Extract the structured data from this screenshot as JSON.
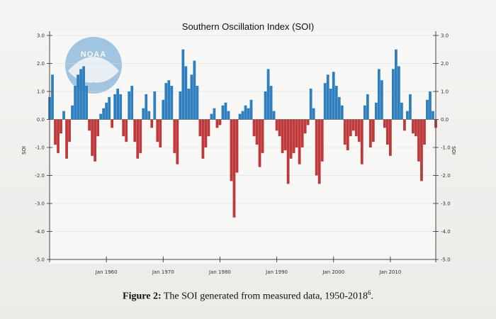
{
  "chart_data": {
    "type": "bar",
    "title": "Southern Oscillation Index (SOI)",
    "ylabel": "SOI",
    "ylabel_right": "SOI",
    "ylim": [
      -5.0,
      3.0
    ],
    "yticks": [
      "3.0",
      "2.0",
      "1.0",
      "0.0",
      "-1.0",
      "-2.0",
      "-3.0",
      "-4.0",
      "-5.0"
    ],
    "yticks_right": [
      "3.0",
      "2.0",
      "1.0",
      "0.0",
      "-1.0",
      "-2.0",
      "-3.0",
      "-4.0",
      "-5.0"
    ],
    "xticks": [
      "Jan 1960",
      "Jan 1970",
      "Jan 1980",
      "Jan 1990",
      "Jan 2000",
      "Jan 2010"
    ],
    "xlim": [
      1950,
      2018
    ],
    "positive_color": "#2f7fbf",
    "negative_color": "#c0393a",
    "grid": true,
    "series": [
      {
        "x": [
          1950.0,
          1950.5,
          1951.0,
          1951.5,
          1952.0,
          1952.5,
          1953.0,
          1953.5,
          1954.0,
          1954.5,
          1955.0,
          1955.5,
          1956.0,
          1956.5,
          1957.0,
          1957.5,
          1958.0,
          1958.5,
          1959.0,
          1959.5,
          1960.0,
          1960.5,
          1961.0,
          1961.5,
          1962.0,
          1962.5,
          1963.0,
          1963.5,
          1964.0,
          1964.5,
          1965.0,
          1965.5,
          1966.0,
          1966.5,
          1967.0,
          1967.5,
          1968.0,
          1968.5,
          1969.0,
          1969.5,
          1970.0,
          1970.5,
          1971.0,
          1971.5,
          1972.0,
          1972.5,
          1973.0,
          1973.5,
          1974.0,
          1974.5,
          1975.0,
          1975.5,
          1976.0,
          1976.5,
          1977.0,
          1977.5,
          1978.0,
          1978.5,
          1979.0,
          1979.5,
          1980.0,
          1980.5,
          1981.0,
          1981.5,
          1982.0,
          1982.5,
          1983.0,
          1983.5,
          1984.0,
          1984.5,
          1985.0,
          1985.5,
          1986.0,
          1986.5,
          1987.0,
          1987.5,
          1988.0,
          1988.5,
          1989.0,
          1989.5,
          1990.0,
          1990.5,
          1991.0,
          1991.5,
          1992.0,
          1992.5,
          1993.0,
          1993.5,
          1994.0,
          1994.5,
          1995.0,
          1995.5,
          1996.0,
          1996.5,
          1997.0,
          1997.5,
          1998.0,
          1998.5,
          1999.0,
          1999.5,
          2000.0,
          2000.5,
          2001.0,
          2001.5,
          2002.0,
          2002.5,
          2003.0,
          2003.5,
          2004.0,
          2004.5,
          2005.0,
          2005.5,
          2006.0,
          2006.5,
          2007.0,
          2007.5,
          2008.0,
          2008.5,
          2009.0,
          2009.5,
          2010.0,
          2010.5,
          2011.0,
          2011.5,
          2012.0,
          2012.5,
          2013.0,
          2013.5,
          2014.0,
          2014.5,
          2015.0,
          2015.5,
          2016.0,
          2016.5,
          2017.0,
          2017.5,
          2018.0
        ],
        "values": [
          0.8,
          1.6,
          -0.9,
          -1.2,
          -0.5,
          0.3,
          -1.4,
          -0.8,
          0.5,
          1.2,
          1.6,
          1.8,
          1.9,
          1.2,
          -0.4,
          -1.3,
          -1.5,
          -0.6,
          0.2,
          0.4,
          0.6,
          0.8,
          -0.3,
          0.9,
          1.1,
          0.9,
          -0.6,
          -0.8,
          1.0,
          1.2,
          -0.8,
          -1.4,
          -1.2,
          0.4,
          0.9,
          0.3,
          -0.3,
          1.0,
          -0.8,
          -1.0,
          0.7,
          1.3,
          1.4,
          1.2,
          -1.2,
          -1.6,
          1.0,
          2.5,
          1.9,
          1.1,
          1.6,
          2.1,
          1.2,
          -0.6,
          -1.4,
          -1.0,
          -0.6,
          0.2,
          0.4,
          -0.3,
          -0.2,
          0.5,
          0.6,
          0.3,
          -2.2,
          -3.5,
          -1.9,
          0.2,
          0.3,
          0.5,
          0.4,
          0.7,
          -0.6,
          -0.9,
          -1.7,
          -1.2,
          1.0,
          1.8,
          1.2,
          0.3,
          -0.4,
          -0.6,
          -1.2,
          -1.1,
          -2.3,
          -1.4,
          -1.2,
          -1.0,
          -1.6,
          -1.0,
          -0.5,
          -0.2,
          1.1,
          0.4,
          -2.0,
          -2.3,
          -1.5,
          1.3,
          1.6,
          1.1,
          1.7,
          1.2,
          0.8,
          0.5,
          -0.9,
          -1.1,
          -0.6,
          -0.4,
          -0.6,
          -0.8,
          -1.6,
          0.5,
          0.9,
          -1.0,
          -0.8,
          0.6,
          1.8,
          1.4,
          -0.3,
          -0.9,
          -1.3,
          1.8,
          2.5,
          1.9,
          0.6,
          -0.4,
          0.3,
          0.9,
          -0.5,
          -0.6,
          -1.5,
          -2.2,
          -0.9,
          0.7,
          1.0,
          0.3,
          -0.3
        ]
      }
    ]
  },
  "figure": {
    "caption_label": "Figure 2:",
    "caption_text": " The SOI generated from measured data, 1950-2018",
    "caption_sup": "6",
    "caption_end": "."
  },
  "logo": {
    "text": "NOAA",
    "color": "#4a8dc8"
  }
}
